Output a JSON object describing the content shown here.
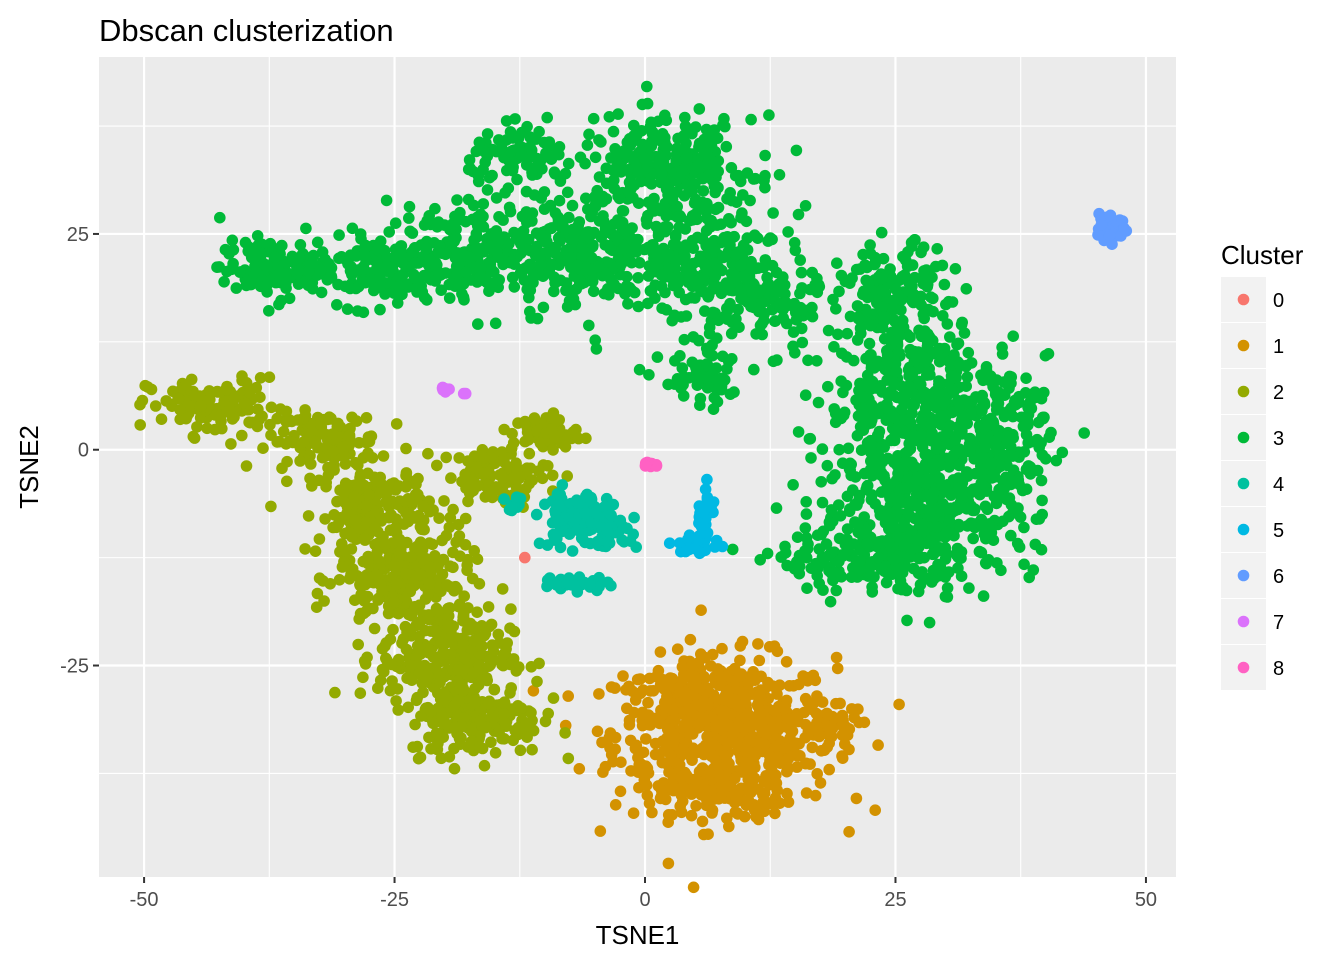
{
  "chart_data": {
    "type": "scatter",
    "title": "Dbscan clusterization",
    "xlabel": "TSNE1",
    "ylabel": "TSNE2",
    "xlim": [
      -54.5,
      53
    ],
    "ylim": [
      -49.5,
      45.5
    ],
    "x_ticks": [
      -50,
      -25,
      0,
      25,
      50
    ],
    "x_tick_labels": [
      "-50",
      "-25",
      "0",
      "25",
      "50"
    ],
    "y_ticks": [
      -25,
      0,
      25
    ],
    "y_tick_labels": [
      "-25",
      "0",
      "25"
    ],
    "grid": true,
    "legend": {
      "title": "Cluster",
      "position": "right"
    },
    "series": [
      {
        "name": "0",
        "color": "#F8766D",
        "regions": [
          {
            "cx": -12,
            "cy": -12.5,
            "rx": 0.4,
            "ry": 0.4,
            "n": 1
          }
        ]
      },
      {
        "name": "1",
        "color": "#D39200",
        "regions": [
          {
            "cx": 8,
            "cy": -33,
            "rx": 10,
            "ry": 8,
            "n": 650
          },
          {
            "cx": 5,
            "cy": -28,
            "rx": 5,
            "ry": 3,
            "n": 80
          },
          {
            "cx": 18,
            "cy": -32,
            "rx": 3,
            "ry": 2,
            "n": 40
          },
          {
            "cx": 7,
            "cy": -40,
            "rx": 5,
            "ry": 2.5,
            "n": 60
          }
        ]
      },
      {
        "name": "2",
        "color": "#93AA00",
        "regions": [
          {
            "cx": -43,
            "cy": 5,
            "rx": 6,
            "ry": 3,
            "n": 120
          },
          {
            "cx": -32,
            "cy": 1,
            "rx": 5,
            "ry": 3,
            "n": 120
          },
          {
            "cx": -27,
            "cy": -7,
            "rx": 5,
            "ry": 5,
            "n": 180
          },
          {
            "cx": -24,
            "cy": -15,
            "rx": 6,
            "ry": 5,
            "n": 220
          },
          {
            "cx": -20,
            "cy": -24,
            "rx": 6,
            "ry": 5,
            "n": 250
          },
          {
            "cx": -17,
            "cy": -31,
            "rx": 6,
            "ry": 4,
            "n": 200
          },
          {
            "cx": -15,
            "cy": -3,
            "rx": 5,
            "ry": 3,
            "n": 100
          },
          {
            "cx": -10,
            "cy": 2,
            "rx": 3,
            "ry": 2,
            "n": 60
          }
        ]
      },
      {
        "name": "3",
        "color": "#00BA38",
        "regions": [
          {
            "cx": -37,
            "cy": 21,
            "rx": 5,
            "ry": 3,
            "n": 120
          },
          {
            "cx": -27,
            "cy": 21,
            "rx": 6,
            "ry": 4,
            "n": 150
          },
          {
            "cx": -17,
            "cy": 23,
            "rx": 6,
            "ry": 5,
            "n": 200
          },
          {
            "cx": -7,
            "cy": 23,
            "rx": 6,
            "ry": 6,
            "n": 220
          },
          {
            "cx": -12,
            "cy": 34,
            "rx": 5,
            "ry": 3,
            "n": 80
          },
          {
            "cx": 2,
            "cy": 33,
            "rx": 8,
            "ry": 5,
            "n": 260
          },
          {
            "cx": 5,
            "cy": 22,
            "rx": 8,
            "ry": 7,
            "n": 260
          },
          {
            "cx": 12,
            "cy": 17,
            "rx": 5,
            "ry": 5,
            "n": 120
          },
          {
            "cx": 25,
            "cy": 17,
            "rx": 5,
            "ry": 6,
            "n": 180
          },
          {
            "cx": 28,
            "cy": 5,
            "rx": 9,
            "ry": 8,
            "n": 420
          },
          {
            "cx": 28,
            "cy": -7,
            "rx": 10,
            "ry": 7,
            "n": 420
          },
          {
            "cx": 22,
            "cy": -13,
            "rx": 8,
            "ry": 3,
            "n": 150
          },
          {
            "cx": 36,
            "cy": 1,
            "rx": 4,
            "ry": 5,
            "n": 100
          },
          {
            "cx": 6,
            "cy": 8,
            "rx": 4,
            "ry": 3,
            "n": 60
          }
        ]
      },
      {
        "name": "4",
        "color": "#00C19F",
        "regions": [
          {
            "cx": -7,
            "cy": -8,
            "rx": 3,
            "ry": 3,
            "n": 120
          },
          {
            "cx": -3.5,
            "cy": -9,
            "rx": 2,
            "ry": 2,
            "n": 60
          },
          {
            "cx": -7,
            "cy": -15.5,
            "rx": 3,
            "ry": 0.8,
            "n": 30
          },
          {
            "cx": -13,
            "cy": -6,
            "rx": 1,
            "ry": 1,
            "n": 10
          }
        ]
      },
      {
        "name": "5",
        "color": "#00B9E3",
        "regions": [
          {
            "cx": 5.5,
            "cy": -11,
            "rx": 1.8,
            "ry": 1.2,
            "n": 30
          },
          {
            "cx": 6,
            "cy": -7,
            "rx": 0.8,
            "ry": 2.5,
            "n": 25
          }
        ]
      },
      {
        "name": "6",
        "color": "#619CFF",
        "regions": [
          {
            "cx": 46.5,
            "cy": 26,
            "rx": 1.3,
            "ry": 2,
            "n": 30
          }
        ]
      },
      {
        "name": "7",
        "color": "#DB72FB",
        "regions": [
          {
            "cx": -20,
            "cy": 7,
            "rx": 0.6,
            "ry": 0.3,
            "n": 8
          },
          {
            "cx": -18,
            "cy": 6.5,
            "rx": 0.2,
            "ry": 0.2,
            "n": 2
          }
        ]
      },
      {
        "name": "8",
        "color": "#FF61C3",
        "regions": [
          {
            "cx": 0.5,
            "cy": -1.7,
            "rx": 0.9,
            "ry": 0.3,
            "n": 10
          }
        ]
      }
    ]
  },
  "colors": {
    "panel_background": "#EBEBEB",
    "grid_major": "#FFFFFF",
    "tick_text": "#4D4D4D"
  }
}
